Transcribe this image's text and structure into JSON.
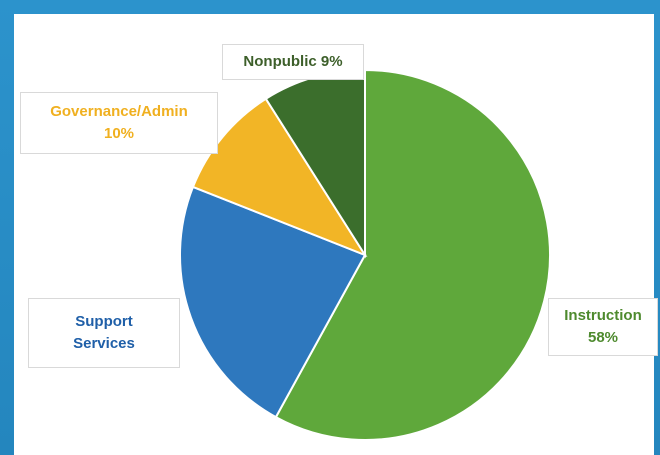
{
  "chart_data": {
    "type": "pie",
    "slices": [
      {
        "name": "Instruction",
        "percent_text": "58%",
        "value": 58,
        "color": "#5fa83b"
      },
      {
        "name": "Support Services",
        "value": 23,
        "color": "#2e78be"
      },
      {
        "name": "Governance/Admin",
        "percent_text": "10%",
        "value": 10,
        "color": "#f2b526"
      },
      {
        "name": "Nonpublic 9%",
        "value": 9,
        "color": "#3b6e2c"
      }
    ],
    "label_colors": {
      "Instruction": "#4e8a2e",
      "Support Services": "#1f5fa8",
      "Governance/Admin": "#f0b020",
      "Nonpublic": "#3d5f2a"
    },
    "support_services_lines": [
      "Support",
      "Services"
    ]
  }
}
